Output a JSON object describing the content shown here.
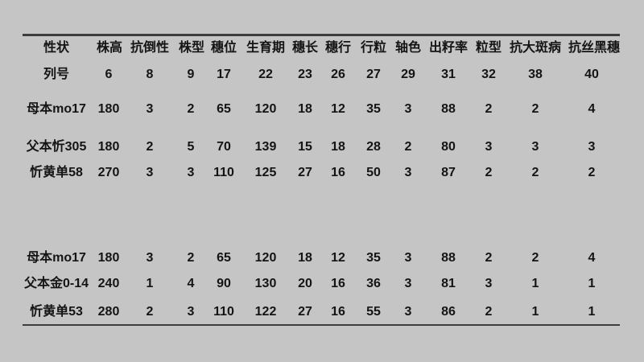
{
  "page": {
    "background_color": "#c5c5c5",
    "rule_color": "#3d3d3d",
    "text_color": "#141414"
  },
  "table": {
    "columns": [
      "性状",
      "株高",
      "抗倒性",
      "株型",
      "穗位",
      "生育期",
      "穗长",
      "穗行",
      "行粒",
      "轴色",
      "出籽率",
      "粒型",
      "抗大斑病",
      "抗丝黑穗"
    ],
    "row_number_header": "列号",
    "column_numbers": [
      "6",
      "8",
      "9",
      "17",
      "22",
      "23",
      "26",
      "27",
      "29",
      "31",
      "32",
      "38",
      "40"
    ],
    "rows": [
      {
        "label": "母本mo17",
        "values": [
          "180",
          "3",
          "2",
          "65",
          "120",
          "18",
          "12",
          "35",
          "3",
          "88",
          "2",
          "2",
          "4"
        ]
      },
      {
        "label": "父本忻305",
        "values": [
          "180",
          "2",
          "5",
          "70",
          "139",
          "15",
          "18",
          "28",
          "2",
          "80",
          "3",
          "3",
          "3"
        ]
      },
      {
        "label": "忻黄单58",
        "values": [
          "270",
          "3",
          "3",
          "110",
          "125",
          "27",
          "16",
          "50",
          "3",
          "87",
          "2",
          "2",
          "2"
        ]
      },
      {
        "label": "母本mo17",
        "values": [
          "180",
          "3",
          "2",
          "65",
          "120",
          "18",
          "12",
          "35",
          "3",
          "88",
          "2",
          "2",
          "4"
        ]
      },
      {
        "label": "父本金0-14",
        "values": [
          "240",
          "1",
          "4",
          "90",
          "130",
          "20",
          "16",
          "36",
          "3",
          "81",
          "3",
          "1",
          "1"
        ]
      },
      {
        "label": "忻黄单53",
        "values": [
          "280",
          "2",
          "3",
          "110",
          "122",
          "27",
          "16",
          "55",
          "3",
          "86",
          "2",
          "1",
          "1"
        ]
      }
    ]
  }
}
